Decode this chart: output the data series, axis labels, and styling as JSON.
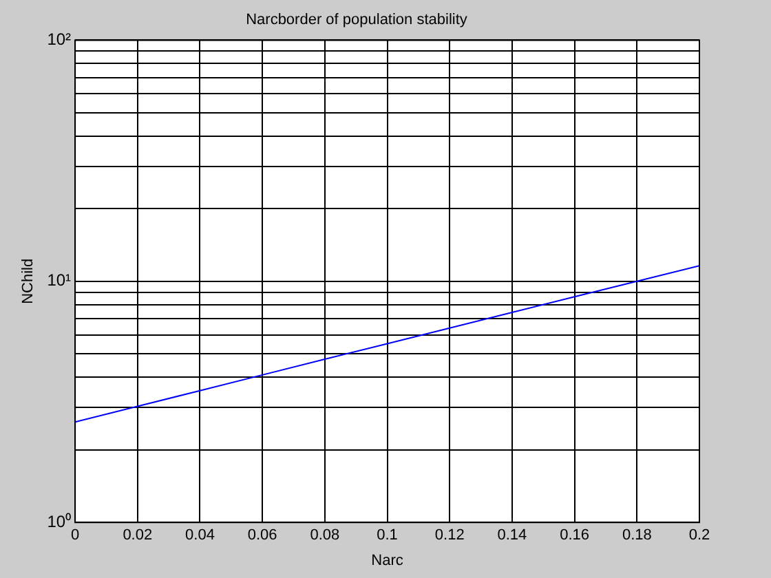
{
  "chart_data": {
    "type": "line",
    "title": "Narcborder of population stability",
    "xlabel": "Narc",
    "ylabel": "NChild",
    "x": [
      0,
      0.02,
      0.04,
      0.06,
      0.08,
      0.1,
      0.12,
      0.14,
      0.16,
      0.18,
      0.2
    ],
    "series": [
      {
        "color": "#0000ff",
        "values": [
          2.61,
          3.03,
          3.52,
          4.09,
          4.75,
          5.51,
          6.4,
          7.43,
          8.63,
          10.0,
          11.6
        ]
      }
    ],
    "xlim": [
      0,
      0.2
    ],
    "xticks": [
      0,
      0.02,
      0.04,
      0.06,
      0.08,
      0.1,
      0.12,
      0.14,
      0.16,
      0.18,
      0.2
    ],
    "ylim": [
      1,
      100
    ],
    "yticks": [
      {
        "value": 1,
        "label": "10⁰"
      },
      {
        "value": 2,
        "label": null
      },
      {
        "value": 3,
        "label": null
      },
      {
        "value": 4,
        "label": null
      },
      {
        "value": 5,
        "label": null
      },
      {
        "value": 6,
        "label": null
      },
      {
        "value": 7,
        "label": null
      },
      {
        "value": 8,
        "label": null
      },
      {
        "value": 9,
        "label": null
      },
      {
        "value": 10,
        "label": "10¹"
      },
      {
        "value": 20,
        "label": null
      },
      {
        "value": 30,
        "label": null
      },
      {
        "value": 40,
        "label": null
      },
      {
        "value": 50,
        "label": null
      },
      {
        "value": 60,
        "label": null
      },
      {
        "value": 70,
        "label": null
      },
      {
        "value": 80,
        "label": null
      },
      {
        "value": 90,
        "label": null
      },
      {
        "value": 100,
        "label": "10²"
      }
    ],
    "log": true,
    "grid": true,
    "legend": false,
    "marker": "none",
    "line_style": "solid"
  }
}
